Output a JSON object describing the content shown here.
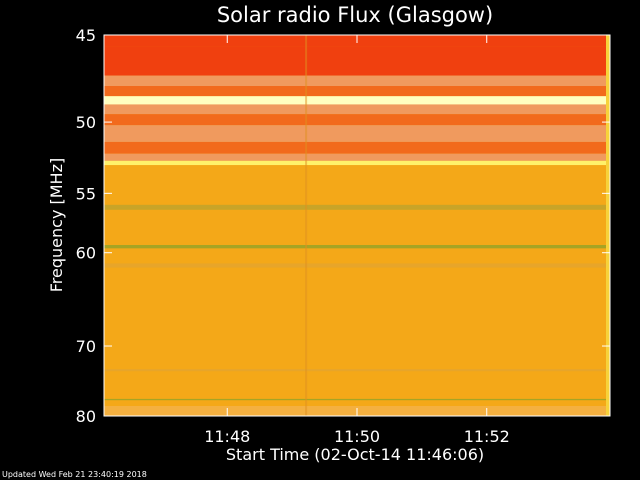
{
  "chart_data": {
    "type": "heatmap",
    "title": "Solar radio Flux (Glasgow)",
    "ylabel": "Frequency [MHz]",
    "xlabel": "Start Time (02-Oct-14 11:46:06)",
    "y_ticks": [
      45,
      50,
      55,
      60,
      70,
      80
    ],
    "x_ticks": [
      "11:48",
      "11:50",
      "11:52"
    ],
    "x_tick_minutes": [
      1.9,
      3.9,
      5.9
    ],
    "ylim": [
      45,
      80
    ],
    "xlim_minutes": [
      0,
      7.8
    ],
    "y_scale": "reciprocal",
    "grid": false,
    "colors": {
      "background": "#000000",
      "base": "#F4A818",
      "red": "#F0400F",
      "orange_red": "#F26A1C",
      "salmon": "#F09A5E",
      "yellow": "#FFF16A",
      "pale": "#FFFFC0",
      "olive": "#A6A424"
    },
    "bands": [
      {
        "from": 45.0,
        "to": 45.6,
        "color": "#F0400F"
      },
      {
        "from": 45.6,
        "to": 47.2,
        "color": "#F0400F"
      },
      {
        "from": 47.2,
        "to": 47.8,
        "color": "#F09A5E"
      },
      {
        "from": 47.8,
        "to": 48.4,
        "color": "#F26A1C"
      },
      {
        "from": 48.4,
        "to": 48.9,
        "color": "#FFFFC0"
      },
      {
        "from": 48.9,
        "to": 49.5,
        "color": "#F09A5E"
      },
      {
        "from": 49.5,
        "to": 50.2,
        "color": "#F26A1C"
      },
      {
        "from": 50.2,
        "to": 51.3,
        "color": "#F09A5E"
      },
      {
        "from": 51.3,
        "to": 52.1,
        "color": "#F26A1C"
      },
      {
        "from": 52.1,
        "to": 52.6,
        "color": "#F09A5E"
      },
      {
        "from": 52.6,
        "to": 52.9,
        "color": "#FFF16A"
      },
      {
        "from": 55.9,
        "to": 56.3,
        "color": "#C8A428"
      },
      {
        "from": 59.3,
        "to": 59.6,
        "color": "#A6A424"
      },
      {
        "from": 61.0,
        "to": 61.4,
        "color": "#E7A52A"
      },
      {
        "from": 73.0,
        "to": 73.3,
        "color": "#E7A52A"
      },
      {
        "from": 77.3,
        "to": 77.5,
        "color": "#A6A424"
      },
      {
        "from": 78.4,
        "to": 80.0,
        "color": "#F4B040"
      }
    ]
  },
  "footer": {
    "updated": "Updated Wed Feb 21 23:40:19 2018"
  }
}
